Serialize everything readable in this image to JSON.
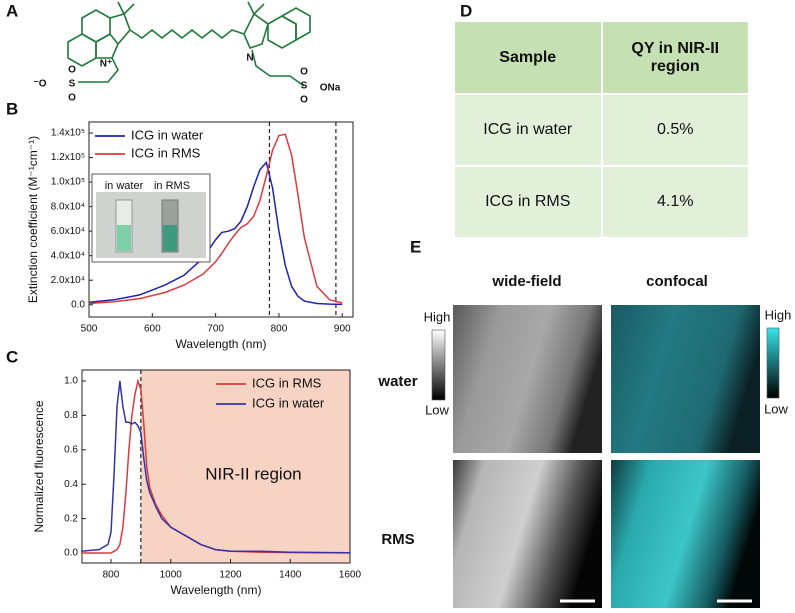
{
  "panel_labels": [
    "A",
    "B",
    "C",
    "D",
    "E"
  ],
  "structure": {
    "atoms": [
      "N⁺",
      "⁻O",
      "S",
      "O",
      "O",
      "N",
      "S",
      "O",
      "O",
      "ONa"
    ]
  },
  "chart_data": [
    {
      "type": "line",
      "x": [
        500,
        540,
        580,
        620,
        650,
        680,
        700,
        710,
        720,
        730,
        740,
        750,
        760,
        770,
        780,
        790,
        800,
        810,
        820,
        830,
        840,
        860,
        880,
        900
      ],
      "series": [
        {
          "name": "ICG in water",
          "color": "#1f22b0",
          "values": [
            2000,
            4000,
            8000,
            16000,
            24000,
            38000,
            53000,
            59000,
            60000,
            62000,
            68000,
            80000,
            96000,
            110000,
            116000,
            95000,
            60000,
            32000,
            15000,
            7000,
            3000,
            1000,
            500,
            300
          ]
        },
        {
          "name": "ICG in RMS",
          "color": "#dc3a3e",
          "values": [
            1000,
            2500,
            5000,
            10000,
            16000,
            25000,
            35000,
            42000,
            50000,
            57000,
            63000,
            66000,
            72000,
            85000,
            105000,
            126000,
            138000,
            139000,
            122000,
            90000,
            55000,
            15000,
            4000,
            1500
          ]
        }
      ],
      "xlabel": "Wavelength (nm)",
      "ylabel": "Extinction coefficient (M⁻¹cm⁻¹)",
      "xlim": [
        500,
        917
      ],
      "ylim": [
        -10000,
        149000
      ],
      "xticks": [
        500,
        600,
        700,
        800,
        900
      ],
      "yticks": [
        {
          "value": 0,
          "label": "0.0"
        },
        {
          "value": 20000,
          "label": "2.0x10⁴"
        },
        {
          "value": 40000,
          "label": "4.0x10⁴"
        },
        {
          "value": 60000,
          "label": "6.0x10⁴"
        },
        {
          "value": 80000,
          "label": "8.0x10⁴"
        },
        {
          "value": 100000,
          "label": "1.0x10⁵"
        },
        {
          "value": 120000,
          "label": "1.2x10⁵"
        },
        {
          "value": 140000,
          "label": "1.4x10⁵"
        }
      ],
      "reference_lines": [
        785,
        890
      ],
      "legend": "upper left",
      "inset_labels": [
        "in water",
        "in RMS"
      ]
    },
    {
      "type": "line",
      "x": [
        700,
        760,
        790,
        800,
        810,
        820,
        830,
        840,
        850,
        860,
        870,
        880,
        890,
        900,
        910,
        920,
        930,
        950,
        970,
        1000,
        1050,
        1100,
        1150,
        1200,
        1300,
        1400,
        1500,
        1600
      ],
      "series": [
        {
          "name": "ICG in RMS",
          "color": "#dc3a3e",
          "values": [
            0,
            0,
            0,
            0,
            0.01,
            0.02,
            0.05,
            0.15,
            0.35,
            0.6,
            0.8,
            0.92,
            1.0,
            0.95,
            0.75,
            0.5,
            0.38,
            0.28,
            0.22,
            0.15,
            0.1,
            0.05,
            0.02,
            0.01,
            0.005,
            0.003,
            0.002,
            0.001
          ]
        },
        {
          "name": "ICG in water",
          "color": "#3434a8",
          "values": [
            0.01,
            0.02,
            0.05,
            0.12,
            0.45,
            0.85,
            1.0,
            0.85,
            0.76,
            0.76,
            0.75,
            0.76,
            0.74,
            0.7,
            0.55,
            0.42,
            0.35,
            0.27,
            0.2,
            0.15,
            0.1,
            0.05,
            0.02,
            0.01,
            0.01,
            0.005,
            0.003,
            0.002
          ]
        }
      ],
      "xlabel": "Wavelength (nm)",
      "ylabel": "Normalized fluorescence",
      "xlim": [
        703,
        1600
      ],
      "ylim": [
        -0.058,
        1.064
      ],
      "xticks": [
        800,
        1000,
        1200,
        1400,
        1600
      ],
      "yticks": [
        {
          "value": 0,
          "label": "0.0"
        },
        0.2,
        0.4,
        0.6,
        0.8,
        {
          "value": 1,
          "label": "1.0"
        }
      ],
      "reference_lines": [
        900
      ],
      "shaded_region": {
        "start": 900,
        "label": "NIR-II region",
        "color": "#f7d3c3"
      },
      "legend": "upper right"
    }
  ],
  "table": {
    "header": [
      "Sample",
      "QY in NIR-II region"
    ],
    "rows": [
      [
        "ICG in water",
        "0.5%"
      ],
      [
        "ICG  in RMS",
        "4.1%"
      ]
    ]
  },
  "images": {
    "columns": [
      "wide-field",
      "confocal"
    ],
    "rows": [
      "water",
      "RMS"
    ],
    "widefield_colorbar": {
      "high": "High",
      "low": "Low"
    },
    "confocal_colorbar": {
      "high": "High",
      "low": "Low"
    }
  }
}
